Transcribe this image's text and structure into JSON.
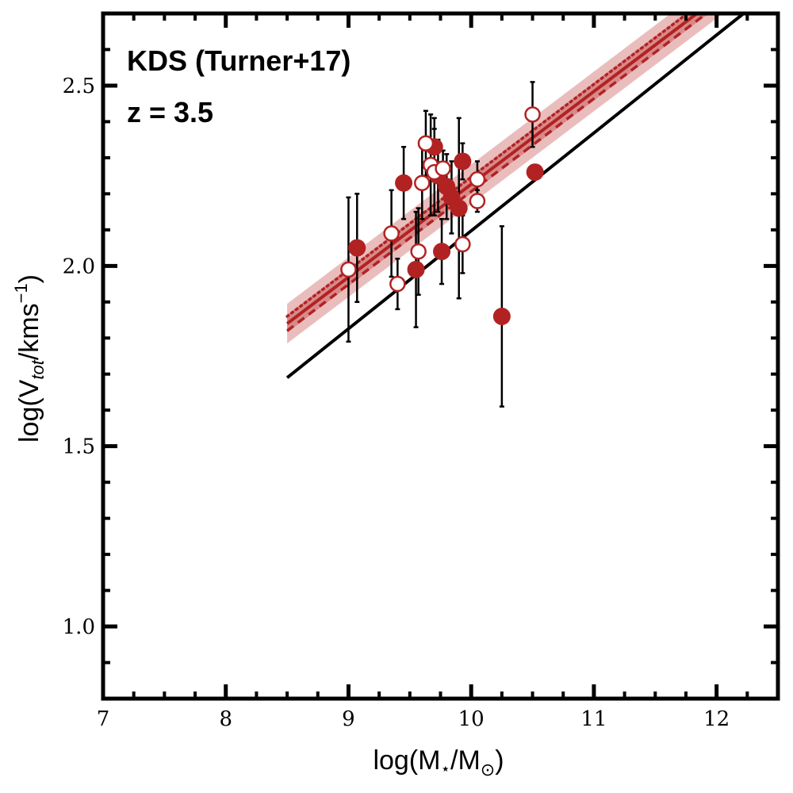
{
  "chart_data": {
    "type": "scatter",
    "title": "",
    "annotations": [
      "KDS (Turner+17)",
      "z = 3.5"
    ],
    "xlabel": {
      "prefix": "log(M",
      "sub": "⋆",
      "mid": "/M",
      "sub2": "⊙",
      "suffix": ")"
    },
    "ylabel": {
      "prefix": "log(V",
      "sub": "tot",
      "mid": "/kms",
      "sup": "−1",
      "suffix": ")"
    },
    "xlim": [
      7,
      12.5
    ],
    "ylim": [
      0.8,
      2.7
    ],
    "xticks": [
      7,
      8,
      9,
      10,
      11,
      12
    ],
    "xtick_labels": [
      "7",
      "8",
      "9",
      "10",
      "11",
      "12"
    ],
    "yticks": [
      1.0,
      1.5,
      2.0,
      2.5
    ],
    "ytick_labels": [
      "1.0",
      "1.5",
      "2.0",
      "2.5"
    ],
    "colors": {
      "primary": "#b22222",
      "band_outer": "#e3a7a7",
      "band_inner": "#d27878",
      "reference": "#000000",
      "errorbar": "#000000"
    },
    "series": [
      {
        "name": "filled",
        "marker": "filled-circle",
        "points": [
          {
            "x": 9.07,
            "y": 2.05,
            "err": 0.15
          },
          {
            "x": 9.45,
            "y": 2.23,
            "err": 0.1
          },
          {
            "x": 9.55,
            "y": 1.99,
            "err": 0.16
          },
          {
            "x": 9.7,
            "y": 2.33,
            "err": 0.08
          },
          {
            "x": 9.73,
            "y": 2.25,
            "err": 0.1
          },
          {
            "x": 9.76,
            "y": 2.04,
            "err": 0.09
          },
          {
            "x": 9.8,
            "y": 2.22,
            "err": 0.09
          },
          {
            "x": 9.84,
            "y": 2.19,
            "err": 0.1
          },
          {
            "x": 9.9,
            "y": 2.16,
            "err": 0.25
          },
          {
            "x": 9.93,
            "y": 2.29,
            "err": 0.05
          },
          {
            "x": 10.25,
            "y": 1.86,
            "err": 0.25
          },
          {
            "x": 10.52,
            "y": 2.26,
            "err": 0.02
          }
        ]
      },
      {
        "name": "open",
        "marker": "open-circle",
        "points": [
          {
            "x": 9.0,
            "y": 1.99,
            "err": 0.2
          },
          {
            "x": 9.35,
            "y": 2.09,
            "err": 0.12
          },
          {
            "x": 9.4,
            "y": 1.95,
            "err": 0.07
          },
          {
            "x": 9.57,
            "y": 2.04,
            "err": 0.12
          },
          {
            "x": 9.6,
            "y": 2.23,
            "err": 0.1
          },
          {
            "x": 9.63,
            "y": 2.34,
            "err": 0.09
          },
          {
            "x": 9.67,
            "y": 2.28,
            "err": 0.14
          },
          {
            "x": 9.7,
            "y": 2.26,
            "err": 0.12
          },
          {
            "x": 9.77,
            "y": 2.27,
            "err": 0.05
          },
          {
            "x": 9.93,
            "y": 2.06,
            "err": 0.08
          },
          {
            "x": 10.05,
            "y": 2.24,
            "err": 0.05
          },
          {
            "x": 10.05,
            "y": 2.18,
            "err": 0.03
          },
          {
            "x": 10.5,
            "y": 2.42,
            "err": 0.09
          }
        ]
      }
    ],
    "fit": {
      "name": "best-fit",
      "style": "solid",
      "x": [
        8.5,
        12.5
      ],
      "y": [
        1.84,
        2.87
      ],
      "band_outer": 0.055,
      "band_inner": 0.025
    },
    "fit_dotted": {
      "name": "dotted",
      "style": "dotted",
      "x": [
        8.5,
        12.5
      ],
      "y": [
        1.86,
        2.89
      ]
    },
    "fit_dashed": {
      "name": "dashed",
      "style": "dashed",
      "x": [
        8.5,
        12.5
      ],
      "y": [
        1.82,
        2.85
      ]
    },
    "reference": {
      "name": "reference-relation",
      "style": "solid",
      "x": [
        8.5,
        12.22
      ],
      "y": [
        1.69,
        2.7
      ]
    }
  }
}
